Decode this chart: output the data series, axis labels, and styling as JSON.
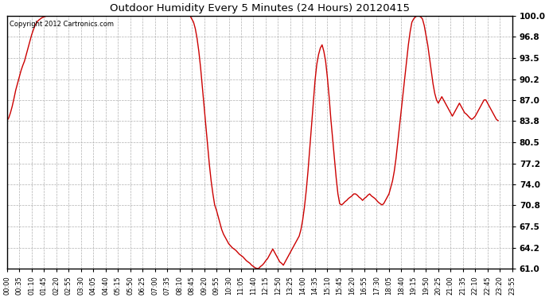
{
  "title": "Outdoor Humidity Every 5 Minutes (24 Hours) 20120415",
  "copyright_text": "Copyright 2012 Cartronics.com",
  "line_color": "#cc0000",
  "background_color": "#ffffff",
  "grid_color": "#b0b0b0",
  "ylim": [
    61.0,
    100.0
  ],
  "yticks": [
    61.0,
    64.2,
    67.5,
    70.8,
    74.0,
    77.2,
    80.5,
    83.8,
    87.0,
    90.2,
    93.5,
    96.8,
    100.0
  ],
  "figsize": [
    6.9,
    3.75
  ],
  "dpi": 100,
  "humidity_data": [
    83.8,
    84.2,
    85.0,
    86.0,
    87.2,
    88.5,
    89.5,
    90.5,
    91.5,
    92.3,
    93.0,
    94.0,
    95.0,
    96.0,
    97.0,
    97.8,
    98.5,
    99.0,
    99.3,
    99.5,
    99.7,
    99.8,
    99.9,
    100.0,
    100.0,
    100.0,
    100.0,
    100.0,
    100.0,
    100.0,
    100.0,
    100.0,
    100.0,
    100.0,
    100.0,
    100.0,
    100.0,
    100.0,
    100.0,
    100.0,
    100.0,
    100.0,
    100.0,
    100.0,
    100.0,
    100.0,
    100.0,
    100.0,
    100.0,
    100.0,
    100.0,
    100.0,
    100.0,
    100.0,
    100.0,
    100.0,
    100.0,
    100.0,
    100.0,
    100.0,
    100.0,
    100.0,
    100.0,
    100.0,
    100.0,
    100.0,
    100.0,
    100.0,
    100.0,
    100.0,
    100.0,
    100.0,
    100.0,
    100.0,
    100.0,
    100.0,
    100.0,
    100.0,
    100.0,
    100.0,
    100.0,
    100.0,
    100.0,
    100.0,
    100.0,
    100.0,
    100.0,
    100.0,
    100.0,
    100.0,
    100.0,
    100.0,
    100.0,
    100.0,
    100.0,
    100.0,
    100.0,
    100.0,
    100.0,
    100.0,
    100.0,
    100.0,
    100.0,
    100.0,
    100.0,
    99.5,
    99.0,
    98.0,
    96.5,
    94.5,
    92.0,
    89.0,
    86.0,
    83.0,
    80.0,
    77.0,
    74.5,
    72.5,
    70.8,
    70.0,
    69.0,
    68.0,
    67.0,
    66.3,
    65.8,
    65.3,
    64.8,
    64.5,
    64.2,
    64.0,
    63.8,
    63.5,
    63.2,
    63.0,
    62.8,
    62.5,
    62.2,
    62.0,
    61.8,
    61.5,
    61.3,
    61.1,
    61.0,
    61.0,
    61.3,
    61.5,
    61.8,
    62.2,
    62.5,
    63.0,
    63.5,
    64.0,
    63.5,
    63.0,
    62.5,
    62.0,
    61.8,
    61.5,
    62.0,
    62.5,
    63.0,
    63.5,
    64.0,
    64.5,
    65.0,
    65.5,
    66.0,
    67.0,
    68.5,
    70.5,
    73.0,
    76.0,
    79.5,
    83.0,
    86.5,
    90.0,
    92.5,
    94.0,
    95.0,
    95.5,
    94.5,
    93.0,
    90.5,
    87.5,
    84.0,
    81.0,
    78.0,
    75.0,
    72.5,
    71.0,
    70.8,
    71.0,
    71.3,
    71.5,
    71.8,
    72.0,
    72.2,
    72.5,
    72.5,
    72.3,
    72.0,
    71.8,
    71.5,
    71.8,
    72.0,
    72.3,
    72.5,
    72.2,
    72.0,
    71.8,
    71.5,
    71.2,
    71.0,
    70.8,
    71.0,
    71.5,
    72.0,
    72.5,
    73.5,
    74.5,
    76.0,
    78.0,
    80.5,
    83.0,
    85.5,
    88.0,
    90.5,
    93.0,
    95.5,
    97.5,
    99.0,
    99.5,
    99.8,
    100.0,
    100.0,
    99.8,
    99.5,
    98.5,
    97.0,
    95.5,
    93.5,
    91.5,
    89.5,
    88.0,
    87.0,
    86.5,
    87.0,
    87.5,
    87.0,
    86.5,
    86.0,
    85.5,
    85.0,
    84.5,
    85.0,
    85.5,
    86.0,
    86.5,
    86.0,
    85.5,
    85.0,
    84.8,
    84.5,
    84.2,
    84.0,
    84.2,
    84.5,
    85.0,
    85.5,
    86.0,
    86.5,
    87.0,
    87.0,
    86.5,
    86.0,
    85.5,
    85.0,
    84.5,
    84.0,
    83.8
  ],
  "x_tick_labels": [
    "00:00",
    "00:35",
    "01:10",
    "01:45",
    "02:20",
    "02:55",
    "03:30",
    "04:05",
    "04:40",
    "05:15",
    "05:50",
    "06:25",
    "07:00",
    "07:35",
    "08:10",
    "08:45",
    "09:20",
    "09:55",
    "10:30",
    "11:05",
    "11:40",
    "12:15",
    "12:50",
    "13:25",
    "14:00",
    "14:35",
    "15:10",
    "15:45",
    "16:20",
    "16:55",
    "17:30",
    "18:05",
    "18:40",
    "19:15",
    "19:50",
    "20:25",
    "21:00",
    "21:35",
    "22:10",
    "22:45",
    "23:20",
    "23:55"
  ],
  "x_tick_positions": [
    0,
    7,
    14,
    21,
    28,
    35,
    42,
    49,
    56,
    63,
    70,
    77,
    84,
    91,
    98,
    105,
    112,
    119,
    126,
    133,
    140,
    147,
    154,
    161,
    168,
    175,
    182,
    189,
    196,
    203,
    210,
    217,
    224,
    231,
    238,
    245,
    252,
    259,
    266,
    273,
    280,
    287
  ]
}
